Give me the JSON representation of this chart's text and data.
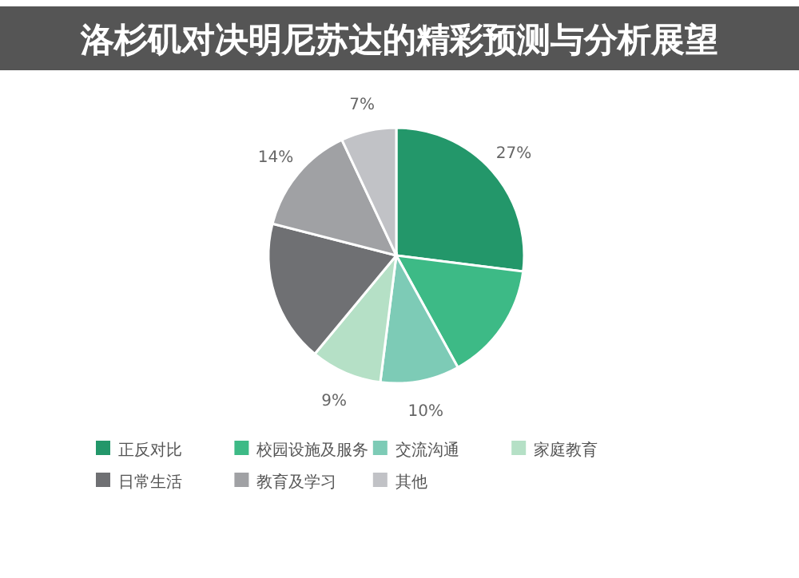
{
  "chart_data": {
    "type": "pie",
    "title": "洛杉矶对决明尼苏达的精彩预测与分析展望",
    "categories": [
      "正反对比",
      "校园设施及服务",
      "交流沟通",
      "家庭教育",
      "日常生活",
      "教育及学习",
      "其他"
    ],
    "values": [
      27,
      15,
      10,
      9,
      18,
      14,
      7
    ],
    "value_labels": [
      "27%",
      null,
      "10%",
      "9%",
      null,
      "14%",
      "7%"
    ],
    "colors": [
      "#23976a",
      "#3dba86",
      "#7dcbb6",
      "#b5e0c6",
      "#6f7073",
      "#a0a1a4",
      "#c1c2c6"
    ],
    "legend": "bottom"
  }
}
